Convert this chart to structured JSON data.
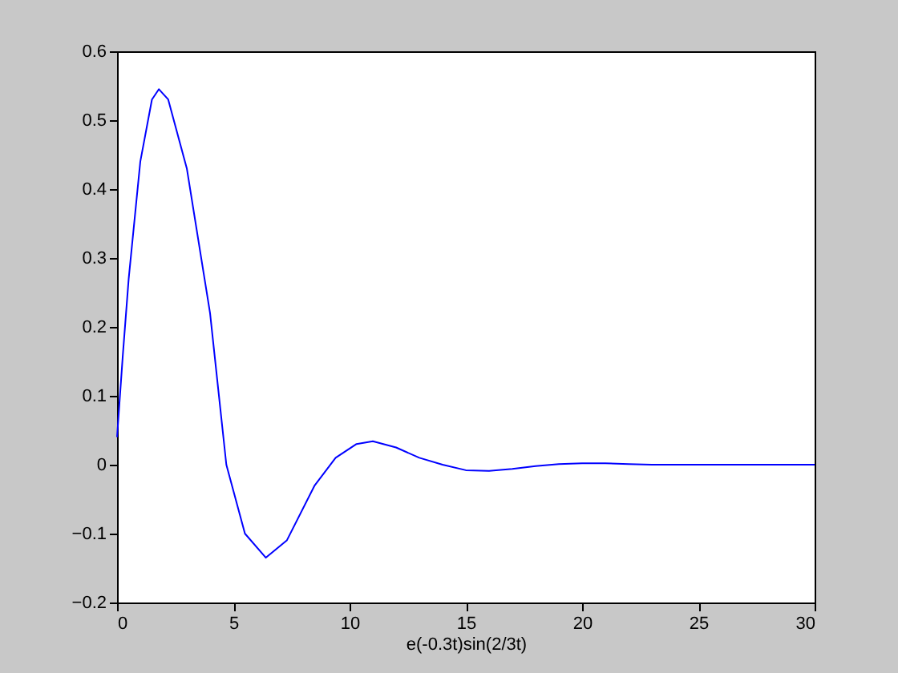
{
  "chart_data": {
    "type": "line",
    "xlabel": "e(-0.3t)sin(2/3t)",
    "x": [
      0,
      0.25,
      0.5,
      1,
      1.5,
      1.8,
      2.2,
      3,
      4,
      4.7,
      5.5,
      6.4,
      7.3,
      8.5,
      9.4,
      10.3,
      11,
      12,
      13,
      14,
      15,
      16,
      17,
      18,
      19,
      20,
      21,
      22,
      23,
      25,
      27,
      30
    ],
    "series": [
      {
        "color": "#0000ff",
        "values": [
          0.04,
          0.16,
          0.27,
          0.44,
          0.53,
          0.545,
          0.53,
          0.43,
          0.22,
          0.0,
          -0.1,
          -0.135,
          -0.11,
          -0.03,
          0.01,
          0.03,
          0.034,
          0.025,
          0.01,
          0.0,
          -0.008,
          -0.009,
          -0.006,
          -0.002,
          0.001,
          0.002,
          0.002,
          0.001,
          0.0,
          0.0,
          0.0,
          0.0
        ]
      }
    ],
    "xlim": [
      0,
      30
    ],
    "xticks": [
      0,
      5,
      10,
      15,
      20,
      25,
      30
    ],
    "ylim": [
      -0.2,
      0.6
    ],
    "yticks": [
      -0.2,
      -0.1,
      0,
      0.1,
      0.2,
      0.3,
      0.4,
      0.5,
      0.6
    ],
    "grid": false,
    "marker": "none",
    "line_style": "solid"
  }
}
